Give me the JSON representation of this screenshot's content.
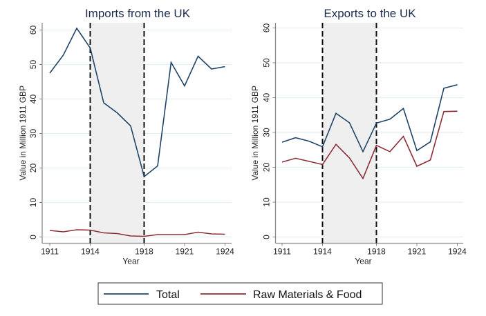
{
  "colors": {
    "total": "#1f4468",
    "raw": "#8b2e36",
    "shade": "#efefef",
    "grid": "#e3eef0",
    "axis": "#8a8a8a"
  },
  "legend": {
    "items": [
      {
        "label": "Total",
        "series": "total"
      },
      {
        "label": "Raw Materials & Food",
        "series": "raw"
      }
    ],
    "placement": "bottom-center"
  },
  "chart_data": [
    {
      "type": "line",
      "title": "Imports from the UK",
      "xlabel": "Year",
      "ylabel": "Value in Million 1911 GBP",
      "x": [
        1911,
        1912,
        1913,
        1914,
        1915,
        1916,
        1917,
        1918,
        1919,
        1920,
        1921,
        1922,
        1923,
        1924
      ],
      "xlim": [
        1911,
        1924
      ],
      "xticks": [
        1911,
        1914,
        1918,
        1921,
        1924
      ],
      "ylim": [
        0,
        60
      ],
      "yticks": [
        0,
        10,
        20,
        30,
        40,
        50,
        60
      ],
      "grid": true,
      "shaded_period": [
        1914,
        1918
      ],
      "vlines": [
        1914,
        1918
      ],
      "series": [
        {
          "name": "Total",
          "key": "total",
          "values": [
            47.5,
            52.7,
            60.5,
            54.8,
            38.9,
            36.0,
            32.2,
            17.5,
            20.6,
            50.6,
            43.8,
            52.4,
            48.7,
            49.4
          ]
        },
        {
          "name": "Raw Materials & Food",
          "key": "raw",
          "values": [
            1.9,
            1.5,
            2.1,
            2.0,
            1.2,
            1.0,
            0.3,
            0.2,
            0.7,
            0.7,
            0.7,
            1.4,
            0.9,
            0.8
          ]
        }
      ]
    },
    {
      "type": "line",
      "title": "Exports to the UK",
      "xlabel": "Year",
      "ylabel": "Value in Million 1911 GBP",
      "x": [
        1911,
        1912,
        1913,
        1914,
        1915,
        1916,
        1917,
        1918,
        1919,
        1920,
        1921,
        1922,
        1923,
        1924
      ],
      "xlim": [
        1911,
        1924
      ],
      "xticks": [
        1911,
        1914,
        1918,
        1921,
        1924
      ],
      "ylim": [
        0,
        60
      ],
      "yticks": [
        0,
        10,
        20,
        30,
        40,
        50,
        60
      ],
      "grid": true,
      "shaded_period": [
        1914,
        1918
      ],
      "vlines": [
        1914,
        1918
      ],
      "series": [
        {
          "name": "Total",
          "key": "total",
          "values": [
            27.2,
            28.5,
            27.5,
            25.9,
            35.5,
            32.8,
            24.5,
            32.7,
            33.8,
            36.9,
            24.8,
            27.3,
            42.7,
            43.7
          ]
        },
        {
          "name": "Raw Materials & Food",
          "key": "raw",
          "values": [
            21.5,
            22.6,
            21.7,
            20.8,
            26.6,
            22.7,
            16.8,
            26.3,
            24.5,
            28.9,
            20.3,
            22.1,
            36.0,
            36.1
          ]
        }
      ]
    }
  ]
}
